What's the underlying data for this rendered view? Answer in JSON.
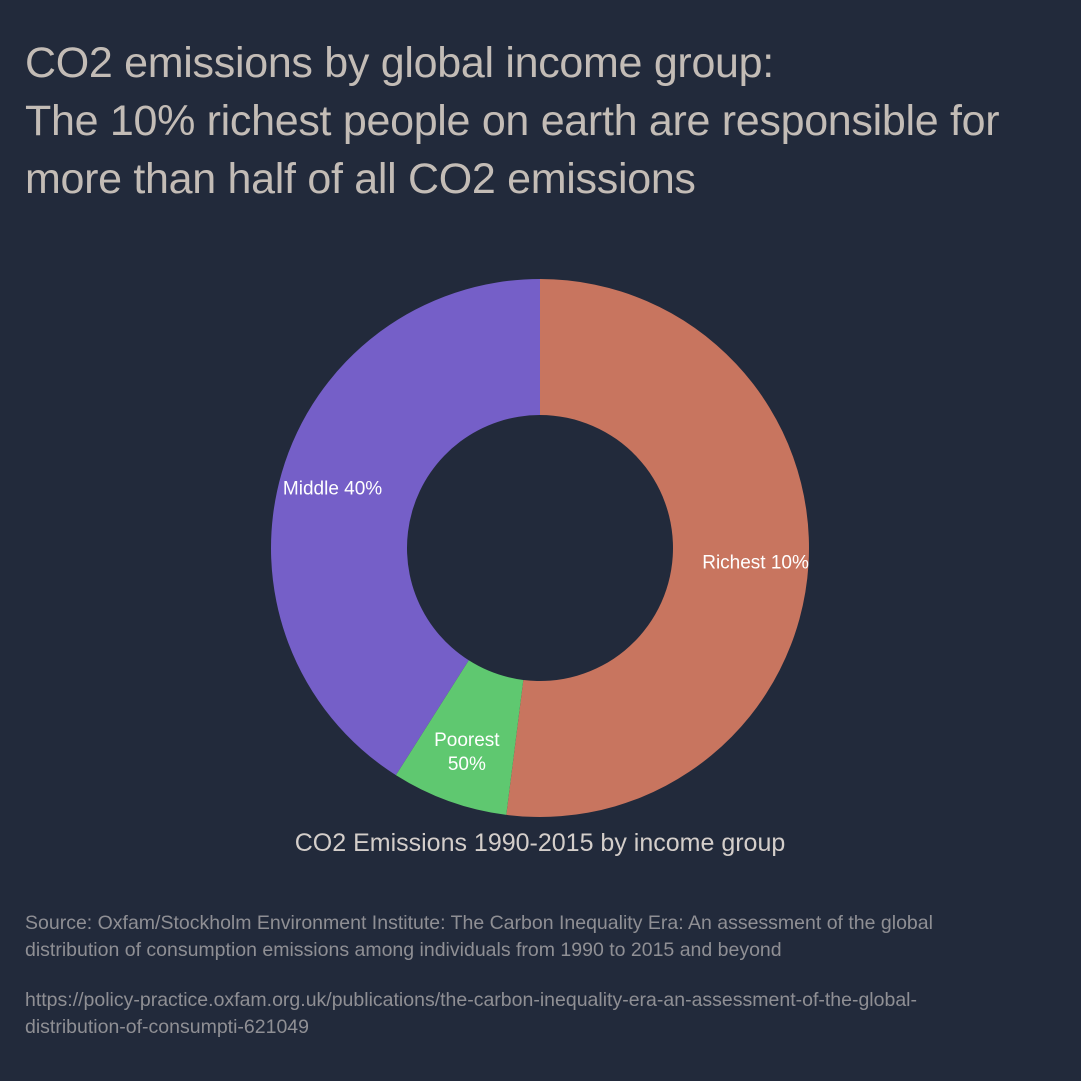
{
  "title": {
    "lines": [
      "CO2 emissions by global income group:",
      "The 10% richest people on earth are responsible for",
      "more than half of all CO2 emissions"
    ]
  },
  "chart_data": {
    "type": "pie",
    "subtype": "donut",
    "title": "CO2 Emissions 1990-2015 by income group",
    "slices": [
      {
        "label": "Richest 10%",
        "value": 52,
        "color": "#c8755f",
        "label_lines": [
          "Richest 10%"
        ]
      },
      {
        "label": "Poorest 50%",
        "value": 7,
        "color": "#5fc870",
        "label_lines": [
          "Poorest",
          "50%"
        ]
      },
      {
        "label": "Middle 40%",
        "value": 41,
        "color": "#755fc8",
        "label_lines": [
          "Middle 40%"
        ]
      }
    ]
  },
  "source": {
    "lines": [
      "Source: Oxfam/Stockholm Environment Institute: The Carbon Inequality Era: An assessment of the global",
      "distribution of consumption emissions among individuals from 1990 to 2015 and beyond"
    ],
    "url_lines": [
      "https://policy-practice.oxfam.org.uk/publications/the-carbon-inequality-era-an-assessment-of-the-global-",
      "distribution-of-consumpti-621049"
    ]
  },
  "colors": {
    "background": "#222a3b",
    "title_text": "#c3bcb6",
    "source_text": "#8f8f94"
  }
}
